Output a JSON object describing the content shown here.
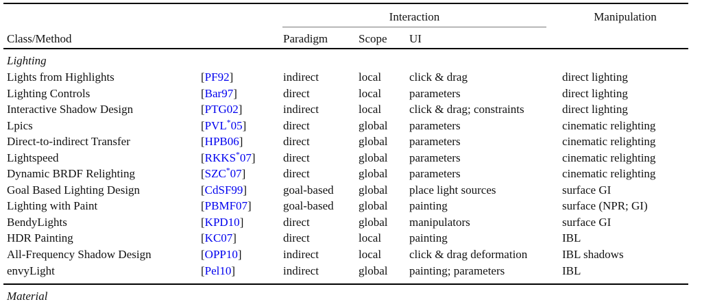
{
  "table": {
    "link_color": "#0000EE",
    "text_color": "#111111",
    "group_headers": {
      "interaction": "Interaction",
      "manipulation": "Manipulation"
    },
    "columns": {
      "class_method": "Class/Method",
      "paradigm": "Paradigm",
      "scope": "Scope",
      "ui": "UI"
    },
    "sections": [
      {
        "label": "Lighting",
        "rows": [
          {
            "method": "Lights from Highlights",
            "cite": "PF92",
            "paradigm": "indirect",
            "scope": "local",
            "ui": "click & drag",
            "manipulation": "direct lighting"
          },
          {
            "method": "Lighting Controls",
            "cite": "Bar97",
            "paradigm": "direct",
            "scope": "local",
            "ui": "parameters",
            "manipulation": "direct lighting"
          },
          {
            "method": "Interactive Shadow Design",
            "cite": "PTG02",
            "paradigm": "indirect",
            "scope": "local",
            "ui": "click & drag; constraints",
            "manipulation": "direct lighting"
          },
          {
            "method": "Lpics",
            "cite": "PVL*05",
            "paradigm": "direct",
            "scope": "global",
            "ui": "parameters",
            "manipulation": "cinematic relighting"
          },
          {
            "method": "Direct-to-indirect Transfer",
            "cite": "HPB06",
            "paradigm": "direct",
            "scope": "global",
            "ui": "parameters",
            "manipulation": "cinematic relighting"
          },
          {
            "method": "Lightspeed",
            "cite": "RKKS*07",
            "paradigm": "direct",
            "scope": "global",
            "ui": "parameters",
            "manipulation": "cinematic relighting"
          },
          {
            "method": "Dynamic BRDF Relighting",
            "cite": "SZC*07",
            "paradigm": "direct",
            "scope": "global",
            "ui": "parameters",
            "manipulation": "cinematic relighting"
          },
          {
            "method": "Goal Based Lighting Design",
            "cite": "CdSF99",
            "paradigm": "goal-based",
            "scope": "global",
            "ui": "place light sources",
            "manipulation": "surface GI"
          },
          {
            "method": "Lighting with Paint",
            "cite": "PBMF07",
            "paradigm": "goal-based",
            "scope": "global",
            "ui": "painting",
            "manipulation": "surface (NPR; GI)"
          },
          {
            "method": "BendyLights",
            "cite": "KPD10",
            "paradigm": "direct",
            "scope": "global",
            "ui": "manipulators",
            "manipulation": "surface GI"
          },
          {
            "method": "HDR Painting",
            "cite": "KC07",
            "paradigm": "direct",
            "scope": "local",
            "ui": "painting",
            "manipulation": "IBL"
          },
          {
            "method": "All-Frequency Shadow Design",
            "cite": "OPP10",
            "paradigm": "indirect",
            "scope": "local",
            "ui": "click & drag deformation",
            "manipulation": "IBL shadows"
          },
          {
            "method": "envyLight",
            "cite": "Pel10",
            "paradigm": "indirect",
            "scope": "global",
            "ui": "painting; parameters",
            "manipulation": "IBL"
          }
        ]
      },
      {
        "label": "Material",
        "rows": []
      }
    ]
  }
}
